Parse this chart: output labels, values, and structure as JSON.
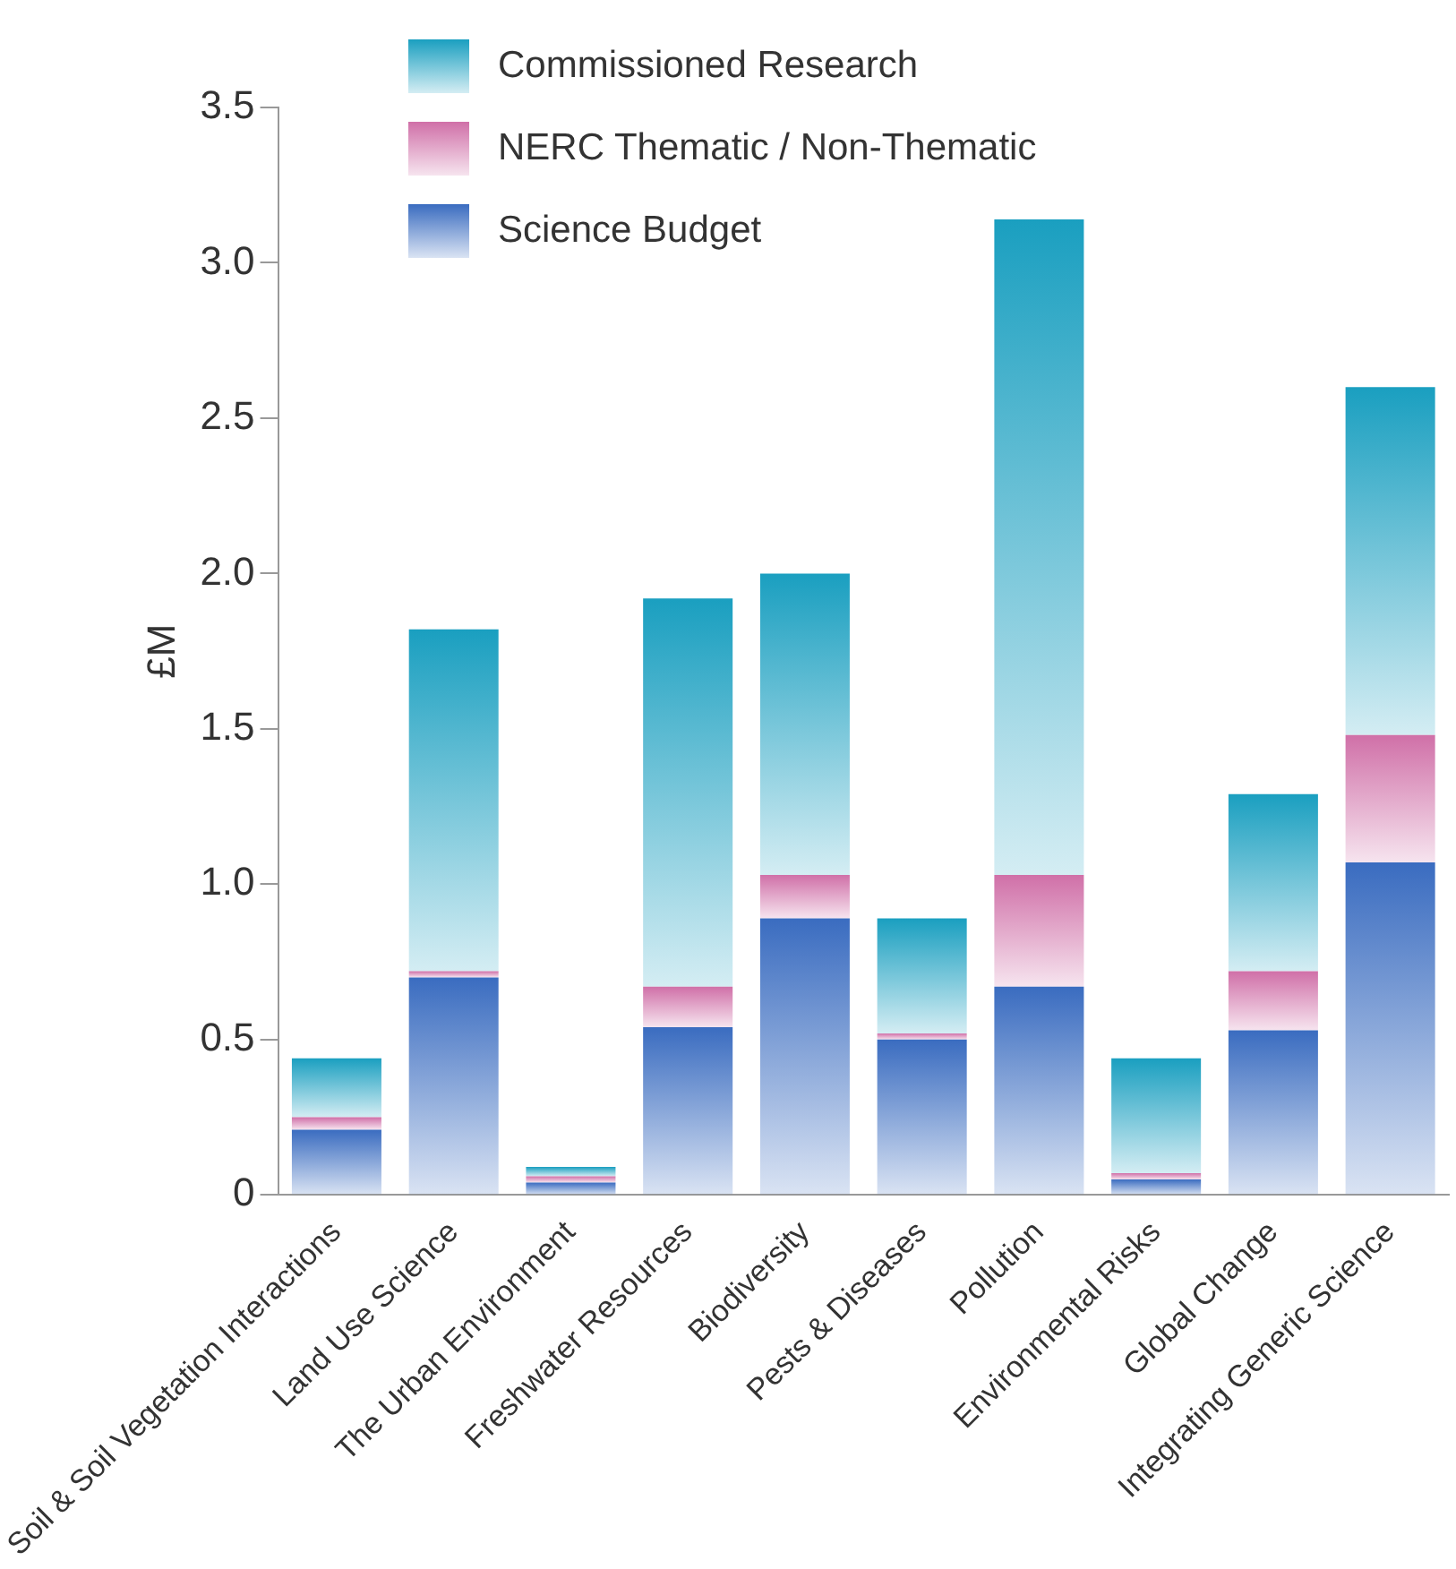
{
  "chart_data": {
    "type": "bar",
    "stacked": true,
    "ylabel": "£M",
    "categories": [
      "Soil & Soil Vegetation Interactions",
      "Land Use Science",
      "The Urban Environment",
      "Freshwater Resources",
      "Biodiversity",
      "Pests & Diseases",
      "Pollution",
      "Environmental Risks",
      "Global Change",
      "Integrating Generic Science"
    ],
    "series": [
      {
        "name": "Science Budget",
        "color": "#3a6cc0",
        "values": [
          0.21,
          0.7,
          0.04,
          0.54,
          0.89,
          0.5,
          0.67,
          0.05,
          0.53,
          1.07
        ]
      },
      {
        "name": "NERC Thematic / Non-Thematic",
        "color": "#d070a8",
        "values": [
          0.04,
          0.02,
          0.02,
          0.13,
          0.14,
          0.02,
          0.36,
          0.02,
          0.19,
          0.41
        ]
      },
      {
        "name": "Commissioned Research",
        "color": "#1a9fc0",
        "values": [
          0.19,
          1.1,
          0.03,
          1.25,
          0.97,
          0.37,
          2.11,
          0.37,
          0.57,
          1.12
        ]
      }
    ],
    "ylim": [
      0,
      3.5
    ],
    "yticks": [
      0,
      {
        "value": 0.5,
        "label": "0.5"
      },
      {
        "value": 1,
        "label": "1.0"
      },
      {
        "value": 1.5,
        "label": "1.5"
      },
      {
        "value": 2,
        "label": "2.0"
      },
      {
        "value": 2.5,
        "label": "2.5"
      },
      {
        "value": 3,
        "label": "3.0"
      },
      {
        "value": 3.5,
        "label": "3.5"
      }
    ],
    "grid": false,
    "legend": "top"
  }
}
